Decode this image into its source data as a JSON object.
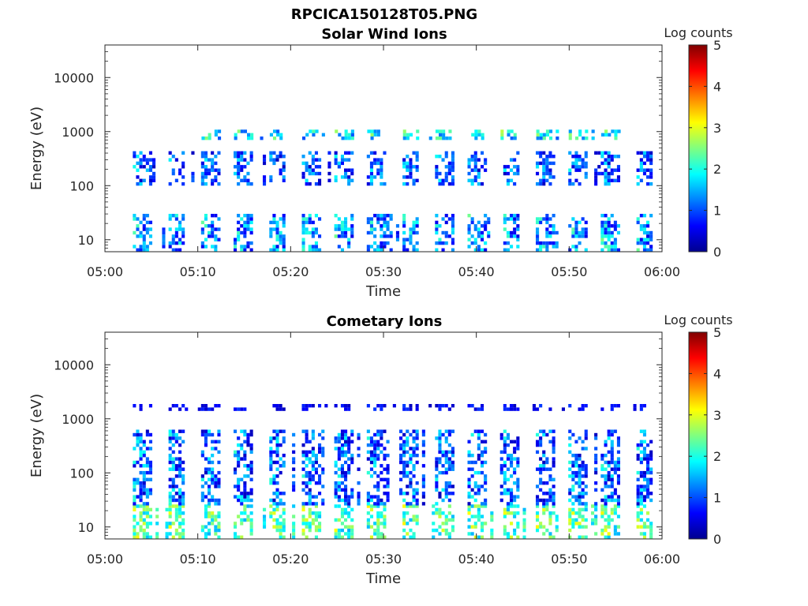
{
  "figure_title": "RPCICA150128T05.PNG",
  "chart_data": [
    {
      "type": "heatmap",
      "title": "Solar Wind Ions",
      "xlabel": "Time",
      "ylabel": "Energy (eV)",
      "x_ticks": [
        "05:00",
        "05:10",
        "05:20",
        "05:30",
        "05:40",
        "05:50",
        "06:00"
      ],
      "xlim": [
        "05:00",
        "06:00"
      ],
      "y_scale": "log",
      "y_ticks": [
        10,
        100,
        1000,
        10000
      ],
      "ylim": [
        6,
        40000
      ],
      "colorbar": {
        "label": "Log counts",
        "ticks": [
          0,
          1,
          2,
          3,
          4,
          5
        ],
        "range": [
          0,
          5
        ],
        "colormap": "jet"
      },
      "description_bands": [
        {
          "energy_range_eV": [
            6,
            30
          ],
          "time_range": [
            "05:03",
            "05:59"
          ],
          "log_counts_range": [
            0.5,
            2.5
          ]
        },
        {
          "energy_range_eV": [
            100,
            400
          ],
          "time_range": [
            "05:03",
            "05:59"
          ],
          "log_counts_range": [
            0.3,
            2.0
          ]
        },
        {
          "energy_range_eV": [
            700,
            1000
          ],
          "time_range": [
            "05:09",
            "05:58"
          ],
          "log_counts_range": [
            1.0,
            2.8
          ]
        }
      ]
    },
    {
      "type": "heatmap",
      "title": "Cometary Ions",
      "xlabel": "Time",
      "ylabel": "Energy (eV)",
      "x_ticks": [
        "05:00",
        "05:10",
        "05:20",
        "05:30",
        "05:40",
        "05:50",
        "06:00"
      ],
      "xlim": [
        "05:00",
        "06:00"
      ],
      "y_scale": "log",
      "y_ticks": [
        10,
        100,
        1000,
        10000
      ],
      "ylim": [
        6,
        40000
      ],
      "colorbar": {
        "label": "Log counts",
        "ticks": [
          0,
          1,
          2,
          3,
          4,
          5
        ],
        "range": [
          0,
          5
        ],
        "colormap": "jet"
      },
      "description_bands": [
        {
          "energy_range_eV": [
            6,
            25
          ],
          "time_range": [
            "05:03",
            "05:59"
          ],
          "log_counts_range": [
            1.5,
            3.3
          ]
        },
        {
          "energy_range_eV": [
            25,
            600
          ],
          "time_range": [
            "05:03",
            "05:59"
          ],
          "log_counts_range": [
            0.3,
            2.2
          ]
        },
        {
          "energy_range_eV": [
            1400,
            1800
          ],
          "time_range": [
            "05:03",
            "05:58"
          ],
          "log_counts_range": [
            0.3,
            1.0
          ]
        }
      ]
    }
  ]
}
